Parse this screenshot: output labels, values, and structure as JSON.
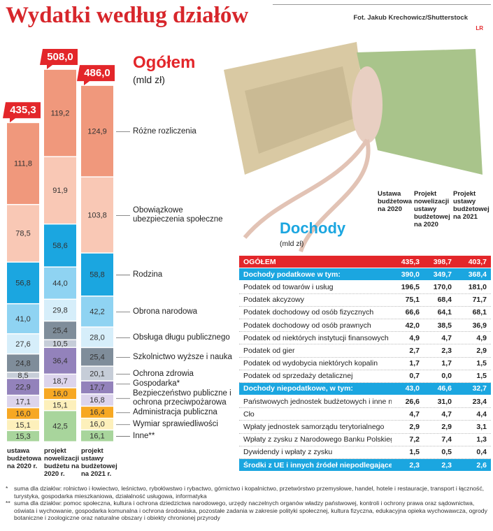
{
  "title": "Wydatki według działów",
  "credit": "Fot. Jakub Krechowicz/Shutterstock",
  "logo": "LR",
  "chart_data": {
    "type": "stacked_bar",
    "title": "Ogółem",
    "subtitle": "(mld zł)",
    "categories": [
      "ustawa budżetowa na 2020 r.",
      "projekt nowelizacji budżetu na 2020 r.",
      "projekt ustawy budżetowej na 2021 r."
    ],
    "totals": [
      435.3,
      508.0,
      486.0
    ],
    "total_labels": [
      "435,3",
      "508,0",
      "486,0"
    ],
    "total_color": "#e3262a",
    "series": [
      {
        "name": "Inne**",
        "color": "#a8d59c",
        "values": [
          15.3,
          42.5,
          16.1
        ],
        "value_labels": [
          "15,3",
          "42,5",
          "16,1"
        ]
      },
      {
        "name": "Wymiar sprawiedliwości",
        "color": "#fdf0bb",
        "values": [
          15.1,
          15.1,
          16.0
        ],
        "value_labels": [
          "15,1",
          "15,1",
          "16,0"
        ]
      },
      {
        "name": "Administracja publiczna",
        "color": "#f7a823",
        "values": [
          16.0,
          16.0,
          16.4
        ],
        "value_labels": [
          "16,0",
          "16,0",
          "16,4"
        ]
      },
      {
        "name": "Bezpieczeństwo publiczne i ochrona przeciwpożarowa",
        "color": "#dcd4ec",
        "values": [
          17.1,
          18.7,
          16.8
        ],
        "value_labels": [
          "17,1",
          "18,7",
          "16,8"
        ]
      },
      {
        "name": "Gospodarka*",
        "color": "#9382bb",
        "values": [
          22.9,
          36.4,
          17.7
        ],
        "value_labels": [
          "22,9",
          "36,4",
          "17,7"
        ]
      },
      {
        "name": "Ochrona zdrowia",
        "color": "#c6cdd8",
        "values": [
          8.5,
          10.5,
          20.1
        ],
        "value_labels": [
          "8,5",
          "10,5",
          "20,1"
        ]
      },
      {
        "name": "Szkolnictwo wyższe i nauka",
        "color": "#7f8d9a",
        "values": [
          24.8,
          25.4,
          25.4
        ],
        "value_labels": [
          "24,8",
          "25,4",
          "25,4"
        ]
      },
      {
        "name": "Obsługa długu publicznego",
        "color": "#d6eefa",
        "values": [
          27.6,
          29.8,
          28.0
        ],
        "value_labels": [
          "27,6",
          "29,8",
          "28,0"
        ]
      },
      {
        "name": "Obrona narodowa",
        "color": "#8fd3f2",
        "values": [
          41.0,
          44.0,
          42.2
        ],
        "value_labels": [
          "41,0",
          "44,0",
          "42,2"
        ]
      },
      {
        "name": "Rodzina",
        "color": "#1ba6e0",
        "values": [
          56.8,
          58.6,
          58.8
        ],
        "value_labels": [
          "56,8",
          "58,6",
          "58,8"
        ]
      },
      {
        "name": "Obowiązkowe ubezpieczenia społeczne",
        "color": "#f9c8b5",
        "values": [
          78.5,
          91.9,
          103.8
        ],
        "value_labels": [
          "78,5",
          "91,9",
          "103,8"
        ]
      },
      {
        "name": "Różne rozliczenia",
        "color": "#f0987c",
        "values": [
          111.8,
          119.2,
          124.9
        ],
        "value_labels": [
          "111,8",
          "119,2",
          "124,9"
        ]
      }
    ]
  },
  "table": {
    "title": "Dochody",
    "unit": "(mld zł)",
    "columns": [
      "Ustawa budżetowa na 2020",
      "Projekt nowelizacji ustawy budżetowej na 2020",
      "Projekt ustawy budżetowej na 2021"
    ],
    "rows": [
      {
        "label": "OGÓŁEM",
        "values": [
          "435,3",
          "398,7",
          "403,7"
        ],
        "color": "#e3262a"
      },
      {
        "label": "Dochody podatkowe w tym:",
        "values": [
          "390,0",
          "349,7",
          "368,4"
        ],
        "color": "#1ba6e0"
      },
      {
        "label": "Podatek od towarów i usług",
        "values": [
          "196,5",
          "170,0",
          "181,0"
        ]
      },
      {
        "label": "Podatek akcyzowy",
        "values": [
          "75,1",
          "68,4",
          "71,7"
        ]
      },
      {
        "label": "Podatek dochodowy od osób fizycznych",
        "values": [
          "66,6",
          "64,1",
          "68,1"
        ]
      },
      {
        "label": "Podatek dochodowy od osób prawnych",
        "values": [
          "42,0",
          "38,5",
          "36,9"
        ]
      },
      {
        "label": "Podatek od niektórych instytucji finansowych",
        "values": [
          "4,9",
          "4,7",
          "4,9"
        ]
      },
      {
        "label": "Podatek od gier",
        "values": [
          "2,7",
          "2,3",
          "2,9"
        ]
      },
      {
        "label": "Podatek od wydobycia niektórych kopalin",
        "values": [
          "1,7",
          "1,7",
          "1,5"
        ]
      },
      {
        "label": "Podatek od sprzedaży detalicznej",
        "values": [
          "0,7",
          "0,0",
          "1,5"
        ]
      },
      {
        "label": "Dochody niepodatkowe, w tym:",
        "values": [
          "43,0",
          "46,6",
          "32,7"
        ],
        "color": "#1ba6e0"
      },
      {
        "label": "Państwowych jednostek budżetowych i inne niepodatkowe",
        "values": [
          "26,6",
          "31,0",
          "23,4"
        ]
      },
      {
        "label": "Cło",
        "values": [
          "4,7",
          "4,7",
          "4,4"
        ]
      },
      {
        "label": "Wpłaty jednostek samorządu terytorialnego",
        "values": [
          "2,9",
          "2,9",
          "3,1"
        ]
      },
      {
        "label": "Wpłaty z zysku z Narodowego Banku Polskiego",
        "values": [
          "7,2",
          "7,4",
          "1,3"
        ]
      },
      {
        "label": "Dywidendy i wpłaty z zysku",
        "values": [
          "1,5",
          "0,5",
          "0,4"
        ]
      },
      {
        "label": "Środki z UE i innych źródeł niepodlegające zwrotowi",
        "values": [
          "2,3",
          "2,3",
          "2,6"
        ],
        "color": "#1ba6e0"
      }
    ]
  },
  "footnotes": [
    {
      "mark": "*",
      "text": "suma dla działów: rolnictwo i łowiectwo, leśnictwo, rybołówstwo i rybactwo, górnictwo i kopalnictwo, przetwórstwo przemysłowe, handel, hotele i restauracje, transport i łączność, turystyka, gospodarka mieszkaniowa, działalność usługowa, informatyka"
    },
    {
      "mark": "**",
      "text": "suma dla działów: pomoc społeczna, kultura i ochrona dziedzictwa narodowego, urzędy naczelnych organów władzy państwowej, kontroli i ochrony prawa oraz sądownictwa, oświata i wychowanie, gospodarka komunalna i ochrona środowiska, pozostałe zadania w zakresie polityki społecznej, kultura fizyczna, edukacyjna opieka wychowawcza, ogrody botaniczne i zoologiczne oraz naturalne obszary i obiekty chronionej przyrody"
    }
  ]
}
